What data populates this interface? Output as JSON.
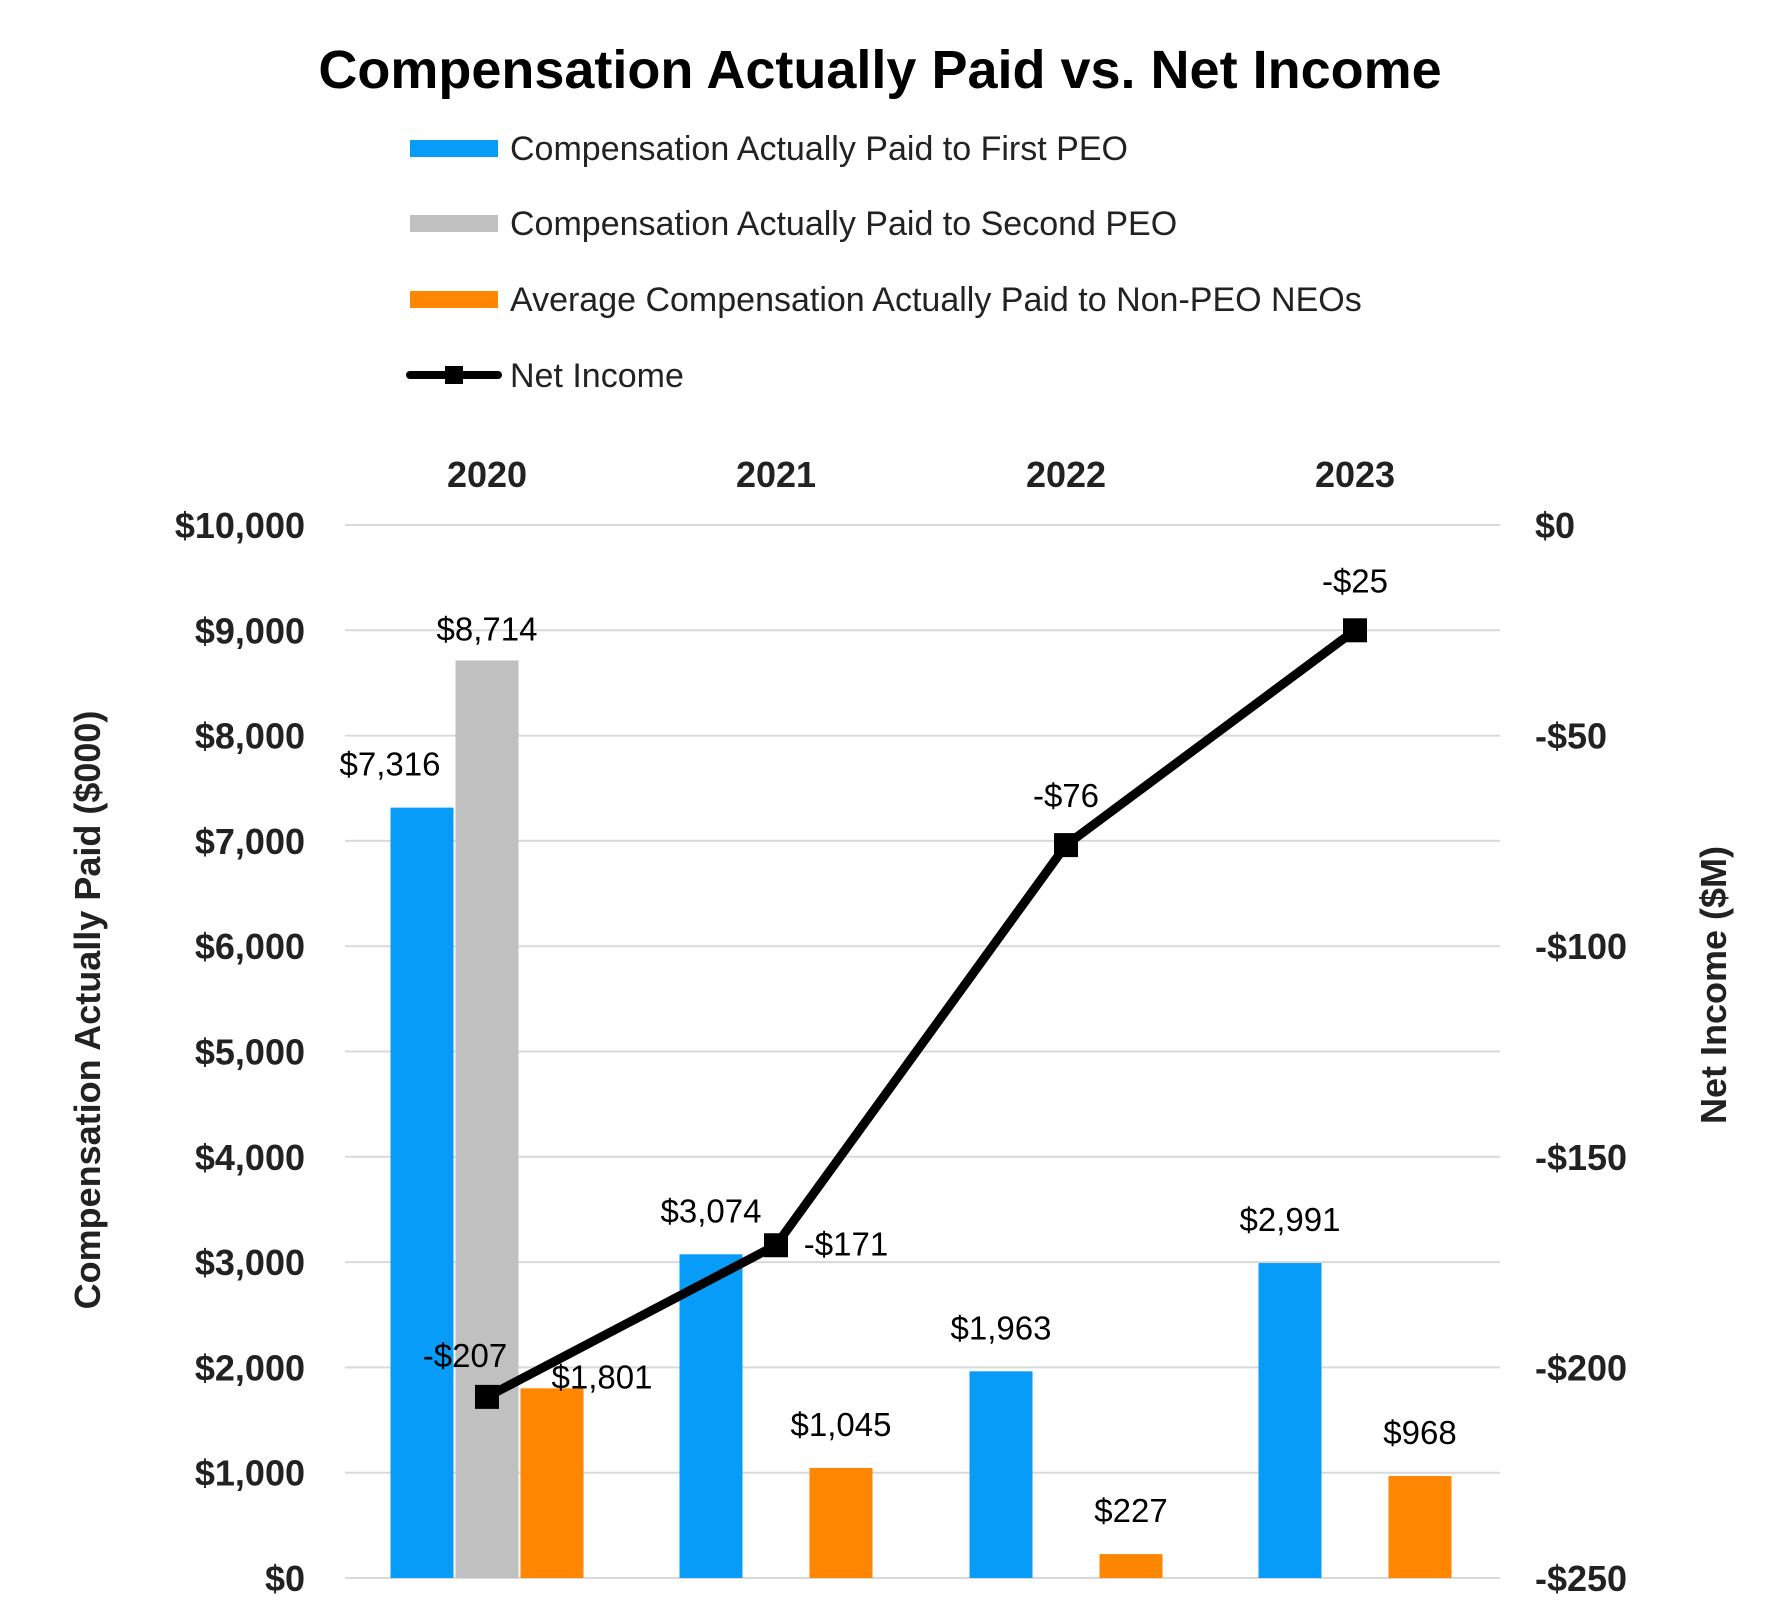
{
  "chart_data": {
    "type": "bar",
    "title": "Compensation Actually Paid vs. Net Income",
    "categories": [
      "2020",
      "2021",
      "2022",
      "2023"
    ],
    "ylabel": "Compensation Actually Paid ($000)",
    "y2label": "Net Income ($M)",
    "ylim": [
      0,
      10000
    ],
    "y2lim": [
      -250,
      0
    ],
    "yticks": [
      0,
      1000,
      2000,
      3000,
      4000,
      5000,
      6000,
      7000,
      8000,
      9000,
      10000
    ],
    "ytick_labels": [
      "$0",
      "$1,000",
      "$2,000",
      "$3,000",
      "$4,000",
      "$5,000",
      "$6,000",
      "$7,000",
      "$8,000",
      "$9,000",
      "$10,000"
    ],
    "y2ticks": [
      0,
      -50,
      -100,
      -150,
      -200,
      -250
    ],
    "y2tick_labels": [
      "$0",
      "-$50",
      "-$100",
      "-$150",
      "-$200",
      "-$250"
    ],
    "grid": true,
    "legend_position": "top",
    "series": [
      {
        "name": "Compensation Actually Paid to First PEO",
        "color": "#069cf8",
        "kind": "bar",
        "values": [
          7316,
          3074,
          1963,
          2991
        ],
        "labels": [
          "$7,316",
          "$3,074",
          "$1,963",
          "$2,991"
        ]
      },
      {
        "name": "Compensation Actually Paid to Second PEO",
        "color": "#c0c0c0",
        "kind": "bar",
        "values": [
          8714,
          null,
          null,
          null
        ],
        "labels": [
          "$8,714",
          null,
          null,
          null
        ]
      },
      {
        "name": "Average Compensation Actually Paid to Non-PEO NEOs",
        "color": "#fe8600",
        "kind": "bar",
        "values": [
          1801,
          1045,
          227,
          968
        ],
        "labels": [
          "$1,801",
          "$1,045",
          "$227",
          "$968"
        ]
      },
      {
        "name": "Net Income",
        "color": "#000000",
        "kind": "line",
        "axis": "secondary",
        "values": [
          -207,
          -171,
          -76,
          -25
        ],
        "labels": [
          "-$207",
          "-$171",
          "-$76",
          "-$25"
        ]
      }
    ]
  }
}
